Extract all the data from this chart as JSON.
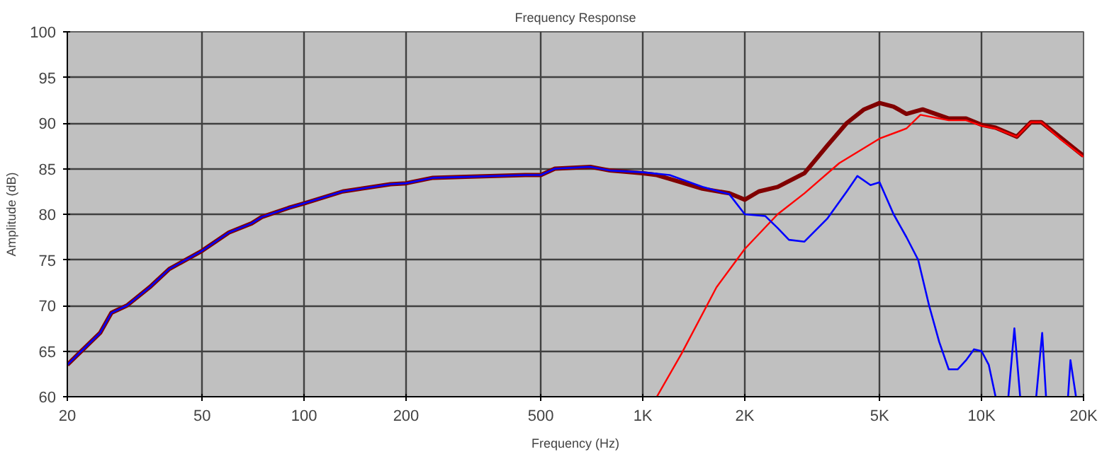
{
  "chart_data": {
    "type": "line",
    "title": "Frequency Response",
    "xlabel": "Frequency (Hz)",
    "ylabel": "Amplitude (dB)",
    "log": "x",
    "grid": true,
    "xlim": [
      20,
      20000
    ],
    "ylim": [
      60,
      100
    ],
    "xticks": [
      20,
      50,
      100,
      200,
      500,
      {
        "value": 1000,
        "label": "1K"
      },
      {
        "value": 2000,
        "label": "2K"
      },
      {
        "value": 5000,
        "label": "5K"
      },
      {
        "value": 10000,
        "label": "10K"
      },
      {
        "value": 20000,
        "label": "20K"
      }
    ],
    "yticks": [
      60,
      65,
      70,
      75,
      80,
      85,
      90,
      95,
      100
    ],
    "series": [
      {
        "color": "#800000",
        "x": [
          20,
          22,
          25,
          27,
          30,
          35,
          40,
          50,
          60,
          70,
          75,
          90,
          100,
          130,
          180,
          200,
          240,
          300,
          450,
          500,
          550,
          700,
          800,
          1000,
          1100,
          1300,
          1500,
          1800,
          2000,
          2200,
          2500,
          3000,
          3500,
          4000,
          4500,
          5000,
          5500,
          6000,
          6700,
          8000,
          9000,
          10000,
          11000,
          12700,
          14000,
          15000,
          17000,
          20000
        ],
        "values": [
          63.5,
          65,
          67,
          69.2,
          70,
          72,
          74,
          76,
          78,
          79,
          79.7,
          80.7,
          81.2,
          82.5,
          83.3,
          83.4,
          84,
          84.1,
          84.3,
          84.3,
          85,
          85.2,
          84.8,
          84.5,
          84.3,
          83.5,
          82.8,
          82.3,
          81.6,
          82.5,
          83,
          84.5,
          87.5,
          90,
          91.5,
          92.2,
          91.8,
          91,
          91.5,
          90.5,
          90.5,
          89.8,
          89.5,
          88.5,
          90.1,
          90.1,
          88.5,
          86.4
        ]
      },
      {
        "color": "#ff0000",
        "x": [
          1100,
          1300,
          1650,
          2000,
          2500,
          3000,
          3800,
          5000,
          6000,
          6600,
          8000,
          9000,
          10000,
          11000,
          12700,
          14000,
          15000,
          17000,
          20000
        ],
        "values": [
          60,
          64.7,
          72,
          76.2,
          80,
          82.3,
          85.6,
          88.3,
          89.4,
          90.9,
          90.3,
          90.3,
          89.7,
          89.4,
          88.5,
          90.1,
          90.1,
          88.3,
          86.3
        ]
      },
      {
        "color": "#0000ff",
        "x": [
          20,
          22,
          25,
          27,
          30,
          35,
          40,
          50,
          60,
          70,
          75,
          90,
          100,
          130,
          180,
          200,
          240,
          300,
          450,
          500,
          550,
          700,
          800,
          1000,
          1200,
          1500,
          1800,
          2000,
          2300,
          2500,
          2700,
          3000,
          3500,
          4000,
          4300,
          4700,
          5000,
          5500,
          6000,
          6500,
          7000,
          7500,
          8000,
          8500,
          9000,
          9500,
          10000,
          10500,
          11000,
          11500,
          12000,
          12500,
          13000,
          14000,
          14500,
          15100,
          15500,
          17000,
          18000,
          18300,
          19000
        ],
        "values": [
          63.5,
          65,
          67,
          69.2,
          70,
          72,
          74,
          76,
          78,
          79,
          79.7,
          80.7,
          81.2,
          82.5,
          83.3,
          83.4,
          84,
          84.1,
          84.3,
          84.3,
          85,
          85.2,
          84.8,
          84.6,
          84.3,
          83,
          82.2,
          80,
          79.8,
          78.5,
          77.2,
          77,
          79.5,
          82.5,
          84.2,
          83.2,
          83.5,
          80,
          77.5,
          75,
          70,
          66,
          63,
          63,
          64,
          65.2,
          65,
          63.5,
          60,
          null,
          60,
          67.5,
          60,
          null,
          60,
          67,
          60,
          null,
          60,
          64,
          60
        ]
      }
    ]
  }
}
